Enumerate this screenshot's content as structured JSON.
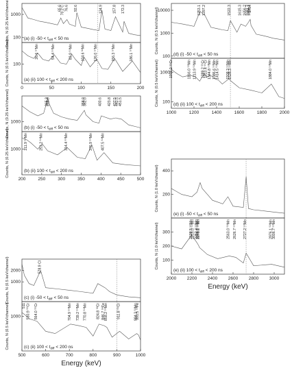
{
  "chart_data": [
    {
      "type": "line",
      "log_y": true,
      "tag": "(a) (i) -50 < t",
      "tag_sub": "diff",
      "tag_end": "< 50 ns",
      "ylabel": "Counts, N (0.25 keV/channel)",
      "color": "#555555",
      "annotation_color": "#e0302a",
      "xlim": [
        0,
        200
      ],
      "ylim": [
        60,
        3000
      ],
      "yticks": [
        100,
        1000
      ],
      "vline": 128,
      "x": [
        0,
        10,
        20,
        30,
        40,
        50,
        60,
        65.6,
        70,
        76,
        80,
        90,
        92.6,
        100,
        110,
        120,
        130,
        134.9,
        140,
        150,
        157.8,
        170,
        172.3,
        180,
        190,
        200
      ],
      "values": [
        2000,
        700,
        600,
        500,
        450,
        400,
        350,
        700,
        400,
        600,
        380,
        300,
        1200,
        280,
        250,
        220,
        200,
        1500,
        230,
        200,
        800,
        170,
        500,
        150,
        130,
        120
      ],
      "annotations": [
        {
          "text": "65.6",
          "x": 65.6
        },
        {
          "text": "70.2 C",
          "x": 70.2
        },
        {
          "text": "76.6",
          "x": 76.6
        },
        {
          "text": "92.6",
          "x": 92.6
        },
        {
          "text": "134.9",
          "x": 134.9
        },
        {
          "text": "157.8",
          "x": 157.8
        },
        {
          "text": "172.3",
          "x": 172.3
        }
      ]
    },
    {
      "type": "line",
      "log_y": true,
      "tag": "(a) (ii) 100 < t",
      "tag_sub": "diff",
      "tag_end": "< 200 ns",
      "ylabel": "Counts, N (0.5 keV/channel)",
      "color": "#555555",
      "annotation_color": "#2a2ad0",
      "xlim": [
        0,
        200
      ],
      "ylim": [
        20,
        600
      ],
      "yticks": [
        100
      ],
      "xticks": [
        0,
        50,
        100,
        150,
        200
      ],
      "vline": 128,
      "x": [
        0,
        10,
        20,
        26.6,
        35,
        45,
        54.4,
        65,
        75,
        83.9,
        90,
        100,
        104.6,
        115,
        126,
        135,
        145,
        156.3,
        170,
        186.1,
        200
      ],
      "values": [
        300,
        200,
        160,
        250,
        150,
        130,
        220,
        110,
        100,
        230,
        150,
        90,
        180,
        80,
        150,
        70,
        65,
        160,
        55,
        130,
        50
      ],
      "annotations": [
        {
          "text": "26.6 ⁵⁷Mn",
          "x": 26.6
        },
        {
          "text": "54.4 ⁵⁹Mn",
          "x": 54.4
        },
        {
          "text": "83.9 ⁵⁹Mn",
          "x": 83.9
        },
        {
          "text": "104.6 ⁶¹Mn",
          "x": 104.6
        },
        {
          "text": "126.0 ⁵⁷Mn",
          "x": 126.0
        },
        {
          "text": "156.3 ⁵⁷Mn",
          "x": 156.3
        },
        {
          "text": "186.1 ⁵⁷Mn",
          "x": 186.1
        }
      ]
    },
    {
      "type": "line",
      "log_y": true,
      "tag": "(b) (i) -50 < t",
      "tag_sub": "diff",
      "tag_end": "< 50 ns",
      "ylabel": "Counts, N (0.25 keV/channel)",
      "color": "#555555",
      "annotation_color": "#e0302a",
      "xlim": [
        200,
        500
      ],
      "ylim": [
        500,
        6000
      ],
      "yticks": [
        1000
      ],
      "x": [
        200,
        220,
        240,
        255,
        265.3,
        268.9,
        280,
        300,
        320,
        340,
        358,
        362,
        380,
        395,
        400.6,
        423.8,
        437.5,
        442.5,
        451.5,
        470,
        490,
        500
      ],
      "values": [
        3000,
        2000,
        1500,
        1800,
        5000,
        3500,
        1800,
        1400,
        1200,
        1100,
        2200,
        1600,
        1000,
        900,
        1500,
        1200,
        1300,
        1250,
        1200,
        800,
        700,
        650
      ],
      "annotations": [
        {
          "text": "265.3",
          "x": 265.3
        },
        {
          "text": "268.9",
          "x": 268.9
        },
        {
          "text": "358.0",
          "x": 358.0
        },
        {
          "text": "362.0",
          "x": 362.0
        },
        {
          "text": "400.6",
          "x": 400.6
        },
        {
          "text": "423.8",
          "x": 423.8
        },
        {
          "text": "437.5",
          "x": 437.5
        },
        {
          "text": "442.5",
          "x": 442.5
        },
        {
          "text": "451.5",
          "x": 451.5
        }
      ]
    },
    {
      "type": "line",
      "log_y": true,
      "tag": "(b) (ii) 100 < t",
      "tag_sub": "diff",
      "tag_end": "< 200 ns",
      "ylabel": "Counts, N (0.25 keV/channel)",
      "color": "#555555",
      "annotation_color": "#2a2ad0",
      "xlim": [
        200,
        500
      ],
      "ylim": [
        200,
        3000
      ],
      "yticks": [
        1000
      ],
      "xticks": [
        200,
        250,
        300,
        350,
        400,
        450,
        500
      ],
      "x": [
        200,
        211.9,
        222,
        240,
        251.2,
        265,
        290,
        314.4,
        340,
        360,
        376.9,
        390,
        407.5,
        430,
        460,
        500
      ],
      "values": [
        2000,
        1800,
        1500,
        1000,
        1400,
        900,
        700,
        1100,
        600,
        550,
        1300,
        500,
        800,
        420,
        380,
        350
      ],
      "annotations": [
        {
          "text": "211.9 ⁵⁹Mn",
          "x": 211.9
        },
        {
          "text": "251.2 ⁶⁰Mn",
          "x": 251.2
        },
        {
          "text": "314.4 ⁶⁰Mn",
          "x": 314.4
        },
        {
          "text": "376.9 ⁵⁹Mn",
          "x": 376.9
        },
        {
          "text": "407.5 ⁶⁰Mn",
          "x": 407.5
        }
      ]
    },
    {
      "type": "line",
      "log_y": true,
      "tag": "(c) (i) -50 < t",
      "tag_sub": "diff",
      "tag_end": "< 50 ns",
      "ylabel": "Counts, N (0.5 keV/channel)",
      "color": "#555555",
      "annotation_color": "#e0302a",
      "xlim": [
        500,
        1000
      ],
      "ylim": [
        300,
        4000
      ],
      "yticks": [
        1000,
        2000
      ],
      "vline": 900,
      "x": [
        500,
        510,
        530,
        550,
        578.9,
        600,
        650,
        700,
        750,
        800,
        820,
        850,
        870,
        900,
        950,
        1000
      ],
      "values": [
        3000,
        1500,
        900,
        800,
        2000,
        700,
        650,
        600,
        550,
        500,
        900,
        700,
        550,
        450,
        400,
        380
      ],
      "annotations": [
        {
          "text": "578.9 Cl",
          "x": 578.9
        }
      ]
    },
    {
      "type": "line",
      "log_y": true,
      "tag": "(c) (ii) 100 < t",
      "tag_sub": "diff",
      "tag_end": "< 200 ns",
      "ylabel": "Counts, N (0.5 keV/channel)",
      "color": "#555555",
      "annotation_color": "#2a2ad0",
      "xlim": [
        500,
        1000
      ],
      "ylim": [
        200,
        2000
      ],
      "yticks": [
        1000
      ],
      "xticks": [
        500,
        600,
        700,
        800,
        900,
        1000
      ],
      "xlabel": "Energy (keV)",
      "vline": 900,
      "x": [
        500,
        511,
        530.9,
        564.0,
        600,
        640,
        704.9,
        739.2,
        770.8,
        800,
        824.8,
        846.7,
        858.2,
        880,
        911.8,
        950,
        984.2,
        991.5,
        1000
      ],
      "values": [
        1200,
        1100,
        900,
        800,
        500,
        450,
        700,
        650,
        600,
        400,
        700,
        650,
        600,
        380,
        500,
        350,
        450,
        420,
        330
      ],
      "annotations": [
        {
          "text": "511",
          "x": 511
        },
        {
          "text": "530.9 ⁵⁵Cr",
          "x": 530.9
        },
        {
          "text": "564.0 ⁵⁵Cr",
          "x": 564.0
        },
        {
          "text": "704.9 ⁵⁹Mn",
          "x": 704.9
        },
        {
          "text": "739.2 ⁵⁹Mn",
          "x": 739.2
        },
        {
          "text": "770.8 ⁵⁹Mn",
          "x": 770.8
        },
        {
          "text": "824.8 ⁵³Cr",
          "x": 824.8
        },
        {
          "text": "846.7 ⁵⁶Fe",
          "x": 846.7
        },
        {
          "text": "858.2 ⁵⁵Mn",
          "x": 858.2
        },
        {
          "text": "911.8 ⁵⁹Cr",
          "x": 911.8
        },
        {
          "text": "984.2 ⁵⁶Mn",
          "x": 984.2
        },
        {
          "text": "991.5 ⁵⁵Fe",
          "x": 991.5
        }
      ]
    },
    {
      "type": "line",
      "log_y": true,
      "tag": "(d) (i) -50 < t",
      "tag_sub": "diff",
      "tag_end": "< 50 ns",
      "ylabel": "Counts, N (0.5 keV/channel)",
      "color": "#555555",
      "annotation_color": "#e0302a",
      "xlim": [
        1000,
        2000
      ],
      "ylim": [
        80,
        20000
      ],
      "yticks": [
        100,
        1000,
        10000
      ],
      "vline": 1522,
      "x": [
        1000,
        1100,
        1200,
        1253.1,
        1297.2,
        1350,
        1400,
        1450,
        1500,
        1522.3,
        1580,
        1615.3,
        1656.2,
        1681.7,
        1696.7,
        1704,
        1750,
        1800,
        1850,
        1900,
        2000
      ],
      "values": [
        3000,
        2500,
        2000,
        9000,
        6000,
        1800,
        1600,
        1400,
        1300,
        3500,
        1100,
        2500,
        2000,
        3000,
        4000,
        2200,
        900,
        800,
        700,
        600,
        500
      ],
      "annotations": [
        {
          "text": "1253.1",
          "x": 1253.1
        },
        {
          "text": "1297.2",
          "x": 1297.2
        },
        {
          "text": "1522.3",
          "x": 1522.3
        },
        {
          "text": "1615.3",
          "x": 1615.3
        },
        {
          "text": "1656.2",
          "x": 1656.2
        },
        {
          "text": "1681.7",
          "x": 1681.7
        },
        {
          "text": "1696.7",
          "x": 1696.7
        },
        {
          "text": "1704",
          "x": 1704
        }
      ]
    },
    {
      "type": "line",
      "log_y": true,
      "tag": "(d) (ii) 100 < t",
      "tag_sub": "diff",
      "tag_end": "< 200 ns",
      "ylabel": "Counts, N (0.5 keV/channel)",
      "color": "#555555",
      "annotation_color": "#2a2ad0",
      "xlim": [
        1000,
        2000
      ],
      "ylim": [
        60,
        3000
      ],
      "yticks": [
        100,
        1000
      ],
      "xticks": [
        1000,
        1200,
        1400,
        1600,
        1800,
        2000
      ],
      "vline": 1522,
      "x": [
        1000,
        1006.0,
        1050,
        1100,
        1166.0,
        1213.9,
        1250,
        1289.2,
        1313.4,
        1344.8,
        1386.6,
        1414.5,
        1450,
        1508.3,
        1528.3,
        1600,
        1700,
        1800,
        1884.0,
        1950,
        2000
      ],
      "values": [
        1500,
        1200,
        900,
        700,
        800,
        700,
        500,
        900,
        700,
        800,
        600,
        550,
        400,
        600,
        500,
        300,
        250,
        200,
        400,
        150,
        130
      ],
      "annotations": [
        {
          "text": "1006.0 ⁵⁵Cr",
          "x": 1006.0
        },
        {
          "text": "1166.0 ⁵⁵Mn",
          "x": 1166.0
        },
        {
          "text": "1213.9 ⁵⁹Mn",
          "x": 1213.9
        },
        {
          "text": "1289.2 ⁵⁵Cr",
          "x": 1289.2
        },
        {
          "text": "1313.4 ⁵⁵Cr",
          "x": 1313.4
        },
        {
          "text": "1344.8 ⁵⁹Mn",
          "x": 1344.8
        },
        {
          "text": "1386.6 ⁵⁹Mn",
          "x": 1386.6
        },
        {
          "text": "1414.5 ⁵⁹Mn",
          "x": 1414.5
        },
        {
          "text": "1508.3 ⁵⁹Mn",
          "x": 1508.3
        },
        {
          "text": "1528.3 ⁵⁹Mn",
          "x": 1528.3
        },
        {
          "text": "1884.0 ⁵⁹Mn",
          "x": 1884.0
        }
      ]
    },
    {
      "type": "line",
      "log_y": false,
      "tag": "(e) (i) -50 < t",
      "tag_sub": "diff",
      "tag_end": "< 50 ns",
      "ylabel": "Counts, N (1.0 keV/channel)",
      "color": "#555555",
      "annotation_color": "#e0302a",
      "xlim": [
        2000,
        3100
      ],
      "ylim": [
        0,
        500
      ],
      "yticks": [
        200,
        400
      ],
      "vline": 2727,
      "x": [
        2000,
        2100,
        2200,
        2250,
        2280,
        2300,
        2350,
        2400,
        2500,
        2550,
        2600,
        2700,
        2727,
        2750,
        2800,
        2900,
        3000,
        3100
      ],
      "values": [
        250,
        200,
        180,
        220,
        300,
        250,
        200,
        150,
        120,
        180,
        100,
        90,
        350,
        80,
        70,
        60,
        50,
        40
      ],
      "annotations": []
    },
    {
      "type": "line",
      "log_y": false,
      "tag": "(e) (ii) 100 < t",
      "tag_sub": "diff",
      "tag_end": "< 200 ns",
      "ylabel": "Counts, N (1.0 keV/channel)",
      "color": "#555555",
      "annotation_color": "#2a2ad0",
      "xlim": [
        2000,
        3100
      ],
      "ylim": [
        0,
        400
      ],
      "yticks": [
        100,
        200,
        300
      ],
      "xticks": [
        2000,
        2200,
        2400,
        2600,
        2800,
        3000
      ],
      "xlabel": "Energy (keV)",
      "vline": 2727,
      "x": [
        2000,
        2100,
        2198.5,
        2215.0,
        2252.4,
        2268.0,
        2273.1,
        2350,
        2450,
        2563.0,
        2626.7,
        2700,
        2727.2,
        2800,
        2976.1,
        3006.7,
        3100
      ],
      "values": [
        200,
        180,
        280,
        260,
        220,
        200,
        190,
        140,
        110,
        130,
        120,
        80,
        150,
        60,
        70,
        65,
        50
      ],
      "annotations": [
        {
          "text": "2198.5 ⁵⁹Mn",
          "x": 2198.5
        },
        {
          "text": "2215.0 ⁵⁹Mn",
          "x": 2215.0
        },
        {
          "text": "2252.4 ⁵⁹Mn",
          "x": 2252.4
        },
        {
          "text": "2268.0 ⁵⁹Mn",
          "x": 2268.0
        },
        {
          "text": "2273.1 ⁵⁹Mn",
          "x": 2273.1
        },
        {
          "text": "2563.0 ⁵⁹Mn",
          "x": 2563.0
        },
        {
          "text": "2626.7 ⁵⁹Mn",
          "x": 2626.7
        },
        {
          "text": "2727.2 ⁵⁹Mn",
          "x": 2727.2
        },
        {
          "text": "2976.1 ⁵⁹Mn",
          "x": 2976.1
        },
        {
          "text": "3006.7 ⁵⁹Mn",
          "x": 3006.7
        }
      ]
    }
  ]
}
